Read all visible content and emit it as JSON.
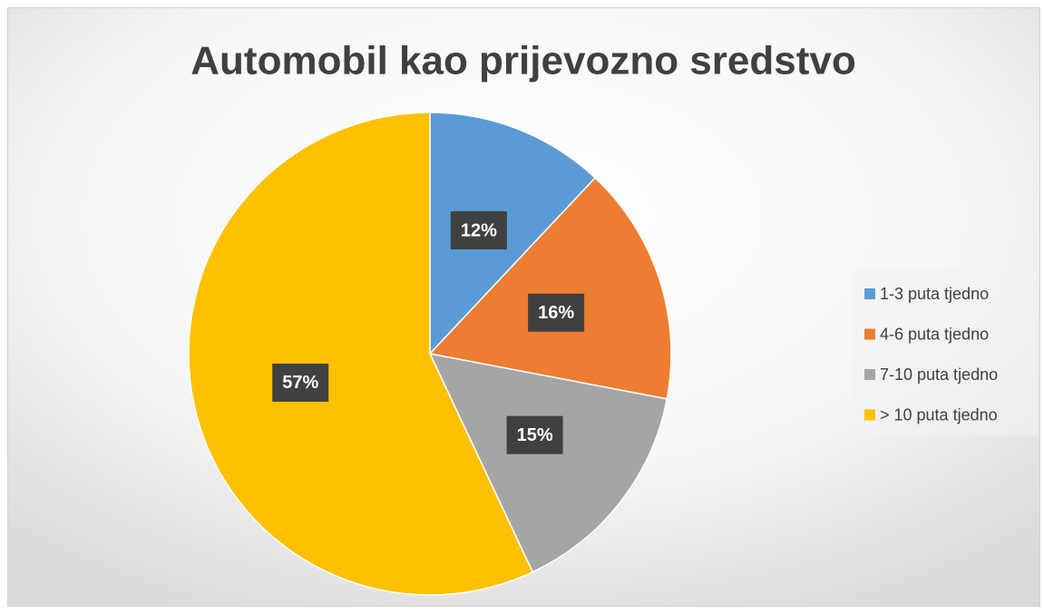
{
  "chart_data": {
    "type": "pie",
    "title": "Automobil kao prijevozno sredstvo",
    "categories": [
      "1-3 puta tjedno",
      "4-6 puta tjedno",
      "7-10 puta tjedno",
      "> 10 puta tjedno"
    ],
    "values": [
      12,
      16,
      15,
      57
    ],
    "value_labels": [
      "12%",
      "16%",
      "15%",
      "57%"
    ],
    "colors": [
      "#5b9bd5",
      "#ed7d31",
      "#a5a5a5",
      "#ffc000"
    ],
    "legend": "right"
  }
}
